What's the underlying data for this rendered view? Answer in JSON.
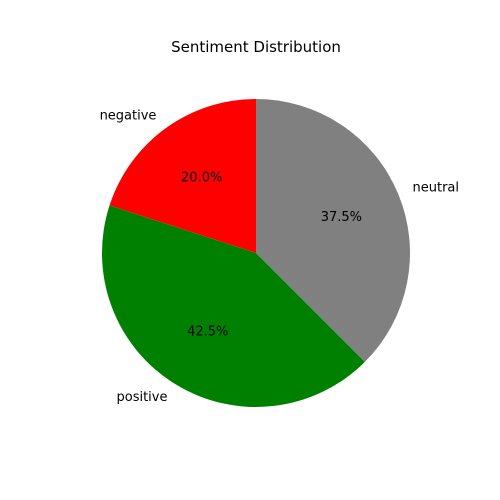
{
  "chart_data": {
    "type": "pie",
    "title": "Sentiment Distribution",
    "start_angle_deg": 90,
    "direction": "counterclockwise",
    "slices": [
      {
        "label": "negative",
        "value": 20.0,
        "percent_label": "20.0%",
        "color": "#ff0000"
      },
      {
        "label": "positive",
        "value": 42.5,
        "percent_label": "42.5%",
        "color": "#008000"
      },
      {
        "label": "neutral",
        "value": 37.5,
        "percent_label": "37.5%",
        "color": "#808080"
      }
    ]
  }
}
